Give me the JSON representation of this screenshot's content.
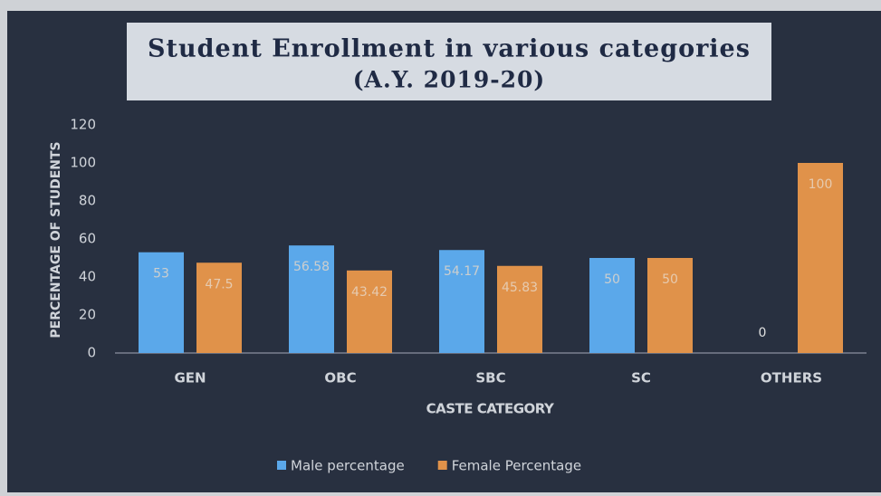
{
  "chart_data": {
    "type": "bar",
    "title": "Student Enrollment in various categories",
    "subtitle": "(A.Y. 2019-20)",
    "x_label": "CASTE CATEGORY",
    "y_label": "PERCENTAGE OF STUDENTS",
    "categories": [
      "GEN",
      "OBC",
      "SBC",
      "SC",
      "OTHERS"
    ],
    "series": [
      {
        "name": "Male percentage",
        "color": "#5ba8ea",
        "values": [
          53,
          56.58,
          54.17,
          50,
          0
        ]
      },
      {
        "name": "Female Percentage",
        "color": "#e0924a",
        "values": [
          47.5,
          43.42,
          45.83,
          50,
          100
        ]
      }
    ],
    "ylim": [
      0,
      120
    ],
    "yticks": [
      0,
      20,
      40,
      60,
      80,
      100,
      120
    ],
    "grid": false,
    "legend": "bottom"
  }
}
